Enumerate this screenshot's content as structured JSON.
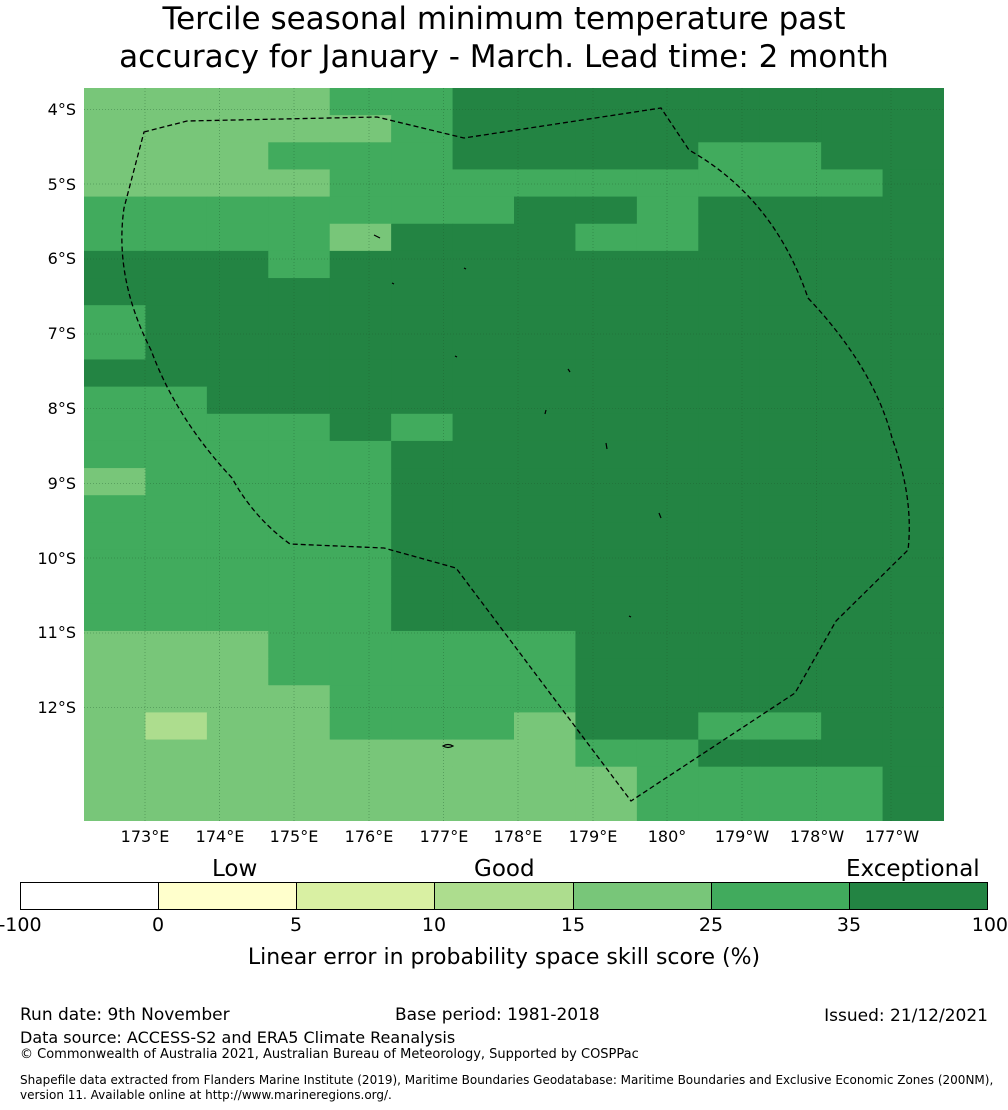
{
  "title": {
    "line1": "Tercile seasonal minimum temperature past",
    "line2": "accuracy for January - March. Lead time: 2 month"
  },
  "map": {
    "lat_labels": [
      "4°S",
      "5°S",
      "6°S",
      "7°S",
      "8°S",
      "9°S",
      "10°S",
      "11°S",
      "12°S"
    ],
    "lon_labels": [
      "173°E",
      "174°E",
      "175°E",
      "176°E",
      "177°E",
      "178°E",
      "179°E",
      "180°",
      "179°W",
      "178°W",
      "177°W"
    ],
    "palette": [
      "#ffffff",
      "#ffffcc",
      "#d9f0a3",
      "#addd8e",
      "#78c679",
      "#41ab5d",
      "#238443"
    ],
    "grid_rows": [
      "44445566666666",
      "44444566666666",
      "44455566665566",
      "44445555555556",
      "55555556656666",
      "55554666556666",
      "66656666666666",
      "66666666666666",
      "56666666666666",
      "56666666666666",
      "66666666666666",
      "55666666666666",
      "55556566666666",
      "55555666666666",
      "45555666666666",
      "55555666666666",
      "55555666666666",
      "55555666666666",
      "55555666666666",
      "55555666666666",
      "44455555666666",
      "44455555666666",
      "44445555666666",
      "43445554665566",
      "44444444556666",
      "44444444455556",
      "44444444455556"
    ],
    "grid_caption": "Cell values are indices into the palette: 4 = 15-25%, 5 = 25-35%, 6 = 35-100%"
  },
  "colorbar": {
    "categories": [
      "Low",
      "Good",
      "Exceptional"
    ],
    "ticks": [
      "-100",
      "0",
      "5",
      "10",
      "15",
      "25",
      "35",
      "100"
    ],
    "colors": [
      "#ffffff",
      "#ffffcc",
      "#d9f0a3",
      "#addd8e",
      "#78c679",
      "#41ab5d",
      "#238443"
    ],
    "label": "Linear error in probability space skill score (%)"
  },
  "footer": {
    "run_date": "Run date: 9th November",
    "base_period": "Base period: 1981-2018",
    "issued": "Issued: 21/12/2021",
    "data_source": "Data source: ACCESS-S2 and ERA5 Climate Reanalysis",
    "copyright": "© Commonwealth of Australia 2021, Australian Bureau of Meteorology, Supported by COSPPac",
    "shapefile_line1": "Shapefile data extracted from Flanders Marine Institute (2019), Maritime Boundaries Geodatabase: Maritime Boundaries and Exclusive Economic Zones (200NM),",
    "shapefile_line2": "version 11. Available online at http://www.marineregions.org/."
  }
}
